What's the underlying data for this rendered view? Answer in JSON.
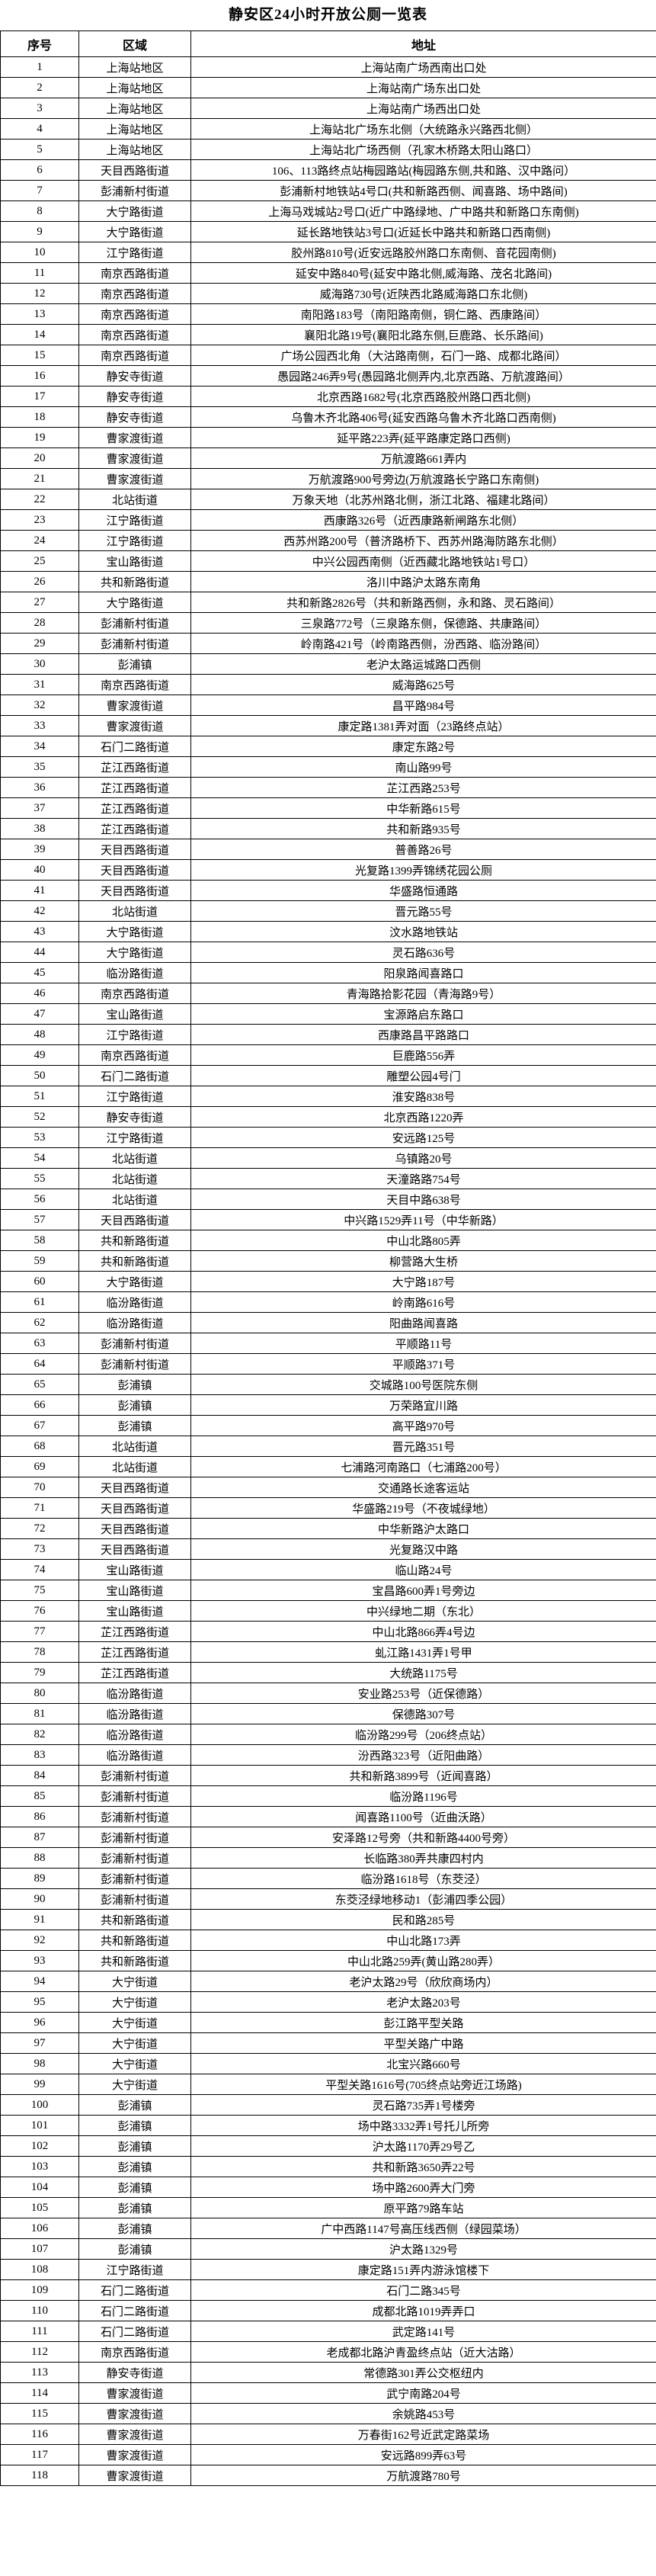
{
  "title": "静安区24小时开放公厕一览表",
  "columns": {
    "no": "序号",
    "region": "区域",
    "address": "地址"
  },
  "rows": [
    {
      "n": "1",
      "r": "上海站地区",
      "a": "上海站南广场西南出口处"
    },
    {
      "n": "2",
      "r": "上海站地区",
      "a": "上海站南广场东出口处"
    },
    {
      "n": "3",
      "r": "上海站地区",
      "a": "上海站南广场西出口处"
    },
    {
      "n": "4",
      "r": "上海站地区",
      "a": "上海站北广场东北侧（大统路永兴路西北侧）"
    },
    {
      "n": "5",
      "r": "上海站地区",
      "a": "上海站北广场西侧（孔家木桥路太阳山路口）"
    },
    {
      "n": "6",
      "r": "天目西路街道",
      "a": "106、113路终点站梅园路站(梅园路东侧,共和路、汉中路问）"
    },
    {
      "n": "7",
      "r": "彭浦新村街道",
      "a": "彭浦新村地铁站4号口(共和新路西侧、闻喜路、场中路间)"
    },
    {
      "n": "8",
      "r": "大宁路街道",
      "a": "上海马戏城站2号口(近广中路绿地、广中路共和新路口东南侧)"
    },
    {
      "n": "9",
      "r": "大宁路街道",
      "a": "延长路地铁站3号口(近延长中路共和新路口西南侧)"
    },
    {
      "n": "10",
      "r": "江宁路街道",
      "a": "胶州路810号(近安远路胶州路口东南侧、音花园南侧)"
    },
    {
      "n": "11",
      "r": "南京西路街道",
      "a": "延安中路840号(延安中路北侧,威海路、茂名北路间)"
    },
    {
      "n": "12",
      "r": "南京西路街道",
      "a": "威海路730号(近陕西北路威海路口东北侧)"
    },
    {
      "n": "13",
      "r": "南京西路街道",
      "a": "南阳路183号（南阳路南侧，铜仁路、西康路间）"
    },
    {
      "n": "14",
      "r": "南京西路街道",
      "a": "襄阳北路19号(襄阳北路东侧,巨鹿路、长乐路间)"
    },
    {
      "n": "15",
      "r": "南京西路街道",
      "a": "广场公园西北角（大沽路南侧，石门一路、成都北路间）"
    },
    {
      "n": "16",
      "r": "静安寺街道",
      "a": "愚园路246弄9号(愚园路北侧弄内,北京西路、万航渡路间）"
    },
    {
      "n": "17",
      "r": "静安寺街道",
      "a": "北京西路1682号(北京西路胶州路口西北侧)"
    },
    {
      "n": "18",
      "r": "静安寺街道",
      "a": "乌鲁木齐北路406号(延安西路乌鲁木齐北路口西南侧)"
    },
    {
      "n": "19",
      "r": "曹家渡街道",
      "a": "延平路223弄(延平路康定路口西侧)"
    },
    {
      "n": "20",
      "r": "曹家渡街道",
      "a": "万航渡路661弄内"
    },
    {
      "n": "21",
      "r": "曹家渡街道",
      "a": "万航渡路900号旁边(万航渡路长宁路口东南侧)"
    },
    {
      "n": "22",
      "r": "北站街道",
      "a": "万象天地（北苏州路北侧，浙江北路、福建北路间）"
    },
    {
      "n": "23",
      "r": "江宁路街道",
      "a": "西康路326号（近西康路新闸路东北侧）"
    },
    {
      "n": "24",
      "r": "江宁路街道",
      "a": "西苏州路200号（普济路桥下、西苏州路海防路东北侧）"
    },
    {
      "n": "25",
      "r": "宝山路街道",
      "a": "中兴公园西南侧（近西藏北路地铁站1号口）"
    },
    {
      "n": "26",
      "r": "共和新路街道",
      "a": "洛川中路沪太路东南角"
    },
    {
      "n": "27",
      "r": "大宁路街道",
      "a": "共和新路2826号（共和新路西侧，永和路、灵石路间）"
    },
    {
      "n": "28",
      "r": "彭浦新村街道",
      "a": "三泉路772号（三泉路东侧，保德路、共康路间）"
    },
    {
      "n": "29",
      "r": "彭浦新村街道",
      "a": "岭南路421号（岭南路西侧，汾西路、临汾路间）"
    },
    {
      "n": "30",
      "r": "彭浦镇",
      "a": "老沪太路运城路口西侧"
    },
    {
      "n": "31",
      "r": "南京西路街道",
      "a": "威海路625号"
    },
    {
      "n": "32",
      "r": "曹家渡街道",
      "a": "昌平路984号"
    },
    {
      "n": "33",
      "r": "曹家渡街道",
      "a": "康定路1381弄对面（23路终点站）"
    },
    {
      "n": "34",
      "r": "石门二路街道",
      "a": "康定东路2号"
    },
    {
      "n": "35",
      "r": "芷江西路街道",
      "a": "南山路99号"
    },
    {
      "n": "36",
      "r": "芷江西路街道",
      "a": "芷江西路253号"
    },
    {
      "n": "37",
      "r": "芷江西路街道",
      "a": "中华新路615号"
    },
    {
      "n": "38",
      "r": "芷江西路街道",
      "a": "共和新路935号"
    },
    {
      "n": "39",
      "r": "天目西路街道",
      "a": "普善路26号"
    },
    {
      "n": "40",
      "r": "天目西路街道",
      "a": "光复路1399弄锦绣花园公厕"
    },
    {
      "n": "41",
      "r": "天目西路街道",
      "a": "华盛路恒通路"
    },
    {
      "n": "42",
      "r": "北站街道",
      "a": "晋元路55号"
    },
    {
      "n": "43",
      "r": "大宁路街道",
      "a": "汶水路地铁站"
    },
    {
      "n": "44",
      "r": "大宁路街道",
      "a": "灵石路636号"
    },
    {
      "n": "45",
      "r": "临汾路街道",
      "a": "阳泉路闻喜路口"
    },
    {
      "n": "46",
      "r": "南京西路街道",
      "a": "青海路拾影花园（青海路9号）"
    },
    {
      "n": "47",
      "r": "宝山路街道",
      "a": "宝源路启东路口"
    },
    {
      "n": "48",
      "r": "江宁路街道",
      "a": "西康路昌平路路口"
    },
    {
      "n": "49",
      "r": "南京西路街道",
      "a": "巨鹿路556弄"
    },
    {
      "n": "50",
      "r": "石门二路街道",
      "a": "雕塑公园4号门"
    },
    {
      "n": "51",
      "r": "江宁路街道",
      "a": "淮安路838号"
    },
    {
      "n": "52",
      "r": "静安寺街道",
      "a": "北京西路1220弄"
    },
    {
      "n": "53",
      "r": "江宁路街道",
      "a": "安远路125号"
    },
    {
      "n": "54",
      "r": "北站街道",
      "a": "乌镇路20号"
    },
    {
      "n": "55",
      "r": "北站街道",
      "a": "天潼路路754号"
    },
    {
      "n": "56",
      "r": "北站街道",
      "a": "天目中路638号"
    },
    {
      "n": "57",
      "r": "天目西路街道",
      "a": "中兴路1529弄11号（中华新路）"
    },
    {
      "n": "58",
      "r": "共和新路街道",
      "a": "中山北路805弄"
    },
    {
      "n": "59",
      "r": "共和新路街道",
      "a": "柳营路大生桥"
    },
    {
      "n": "60",
      "r": "大宁路街道",
      "a": "大宁路187号"
    },
    {
      "n": "61",
      "r": "临汾路街道",
      "a": "岭南路616号"
    },
    {
      "n": "62",
      "r": "临汾路街道",
      "a": "阳曲路闻喜路"
    },
    {
      "n": "63",
      "r": "彭浦新村街道",
      "a": "平顺路11号"
    },
    {
      "n": "64",
      "r": "彭浦新村街道",
      "a": "平顺路371号"
    },
    {
      "n": "65",
      "r": "彭浦镇",
      "a": "交城路100号医院东侧"
    },
    {
      "n": "66",
      "r": "彭浦镇",
      "a": "万荣路宜川路"
    },
    {
      "n": "67",
      "r": "彭浦镇",
      "a": "高平路970号"
    },
    {
      "n": "68",
      "r": "北站街道",
      "a": "晋元路351号"
    },
    {
      "n": "69",
      "r": "北站街道",
      "a": "七浦路河南路口（七浦路200号）"
    },
    {
      "n": "70",
      "r": "天目西路街道",
      "a": "交通路长途客运站"
    },
    {
      "n": "71",
      "r": "天目西路街道",
      "a": "华盛路219号（不夜城绿地）"
    },
    {
      "n": "72",
      "r": "天目西路街道",
      "a": "中华新路沪太路口"
    },
    {
      "n": "73",
      "r": "天目西路街道",
      "a": "光复路汉中路"
    },
    {
      "n": "74",
      "r": "宝山路街道",
      "a": "临山路24号"
    },
    {
      "n": "75",
      "r": "宝山路街道",
      "a": "宝昌路600弄1号旁边"
    },
    {
      "n": "76",
      "r": "宝山路街道",
      "a": "中兴绿地二期（东北）"
    },
    {
      "n": "77",
      "r": "芷江西路街道",
      "a": "中山北路866弄4号边"
    },
    {
      "n": "78",
      "r": "芷江西路街道",
      "a": "虬江路1431弄1号甲"
    },
    {
      "n": "79",
      "r": "芷江西路街道",
      "a": "大统路1175号"
    },
    {
      "n": "80",
      "r": "临汾路街道",
      "a": "安业路253号（近保德路）"
    },
    {
      "n": "81",
      "r": "临汾路街道",
      "a": "保德路307号"
    },
    {
      "n": "82",
      "r": "临汾路街道",
      "a": "临汾路299号（206终点站）"
    },
    {
      "n": "83",
      "r": "临汾路街道",
      "a": "汾西路323号（近阳曲路）"
    },
    {
      "n": "84",
      "r": "彭浦新村街道",
      "a": "共和新路3899号（近闻喜路）"
    },
    {
      "n": "85",
      "r": "彭浦新村街道",
      "a": "临汾路1196号"
    },
    {
      "n": "86",
      "r": "彭浦新村街道",
      "a": "闻喜路1100号（近曲沃路）"
    },
    {
      "n": "87",
      "r": "彭浦新村街道",
      "a": "安泽路12号旁（共和新路4400号旁）"
    },
    {
      "n": "88",
      "r": "彭浦新村街道",
      "a": "长临路380弄共康四村内"
    },
    {
      "n": "89",
      "r": "彭浦新村街道",
      "a": "临汾路1618号（东茭泾）"
    },
    {
      "n": "90",
      "r": "彭浦新村街道",
      "a": "东茭泾绿地移动1（彭浦四季公园）"
    },
    {
      "n": "91",
      "r": "共和新路街道",
      "a": "民和路285号"
    },
    {
      "n": "92",
      "r": "共和新路街道",
      "a": "中山北路173弄"
    },
    {
      "n": "93",
      "r": "共和新路街道",
      "a": "中山北路259弄(黄山路280弄）"
    },
    {
      "n": "94",
      "r": "大宁街道",
      "a": "老沪太路29号（欣欣商场内）"
    },
    {
      "n": "95",
      "r": "大宁街道",
      "a": "老沪太路203号"
    },
    {
      "n": "96",
      "r": "大宁街道",
      "a": "彭江路平型关路"
    },
    {
      "n": "97",
      "r": "大宁街道",
      "a": "平型关路广中路"
    },
    {
      "n": "98",
      "r": "大宁街道",
      "a": "北宝兴路660号"
    },
    {
      "n": "99",
      "r": "大宁街道",
      "a": "平型关路1616号(705终点站旁近江场路)"
    },
    {
      "n": "100",
      "r": "彭浦镇",
      "a": "灵石路735弄1号楼旁"
    },
    {
      "n": "101",
      "r": "彭浦镇",
      "a": "场中路3332弄1号托儿所旁"
    },
    {
      "n": "102",
      "r": "彭浦镇",
      "a": "沪太路1170弄29号乙"
    },
    {
      "n": "103",
      "r": "彭浦镇",
      "a": "共和新路3650弄22号"
    },
    {
      "n": "104",
      "r": "彭浦镇",
      "a": "场中路2600弄大门旁"
    },
    {
      "n": "105",
      "r": "彭浦镇",
      "a": "原平路79路车站"
    },
    {
      "n": "106",
      "r": "彭浦镇",
      "a": "广中西路1147号高压线西侧（绿园菜场）"
    },
    {
      "n": "107",
      "r": "彭浦镇",
      "a": "沪太路1329号"
    },
    {
      "n": "108",
      "r": "江宁路街道",
      "a": "康定路151弄内游泳馆楼下"
    },
    {
      "n": "109",
      "r": "石门二路街道",
      "a": "石门二路345号"
    },
    {
      "n": "110",
      "r": "石门二路街道",
      "a": "成都北路1019弄弄口"
    },
    {
      "n": "111",
      "r": "石门二路街道",
      "a": "武定路141号"
    },
    {
      "n": "112",
      "r": "南京西路街道",
      "a": "老成都北路沪青盈终点站（近大沽路）"
    },
    {
      "n": "113",
      "r": "静安寺街道",
      "a": "常德路301弄公交枢纽内"
    },
    {
      "n": "114",
      "r": "曹家渡街道",
      "a": "武宁南路204号"
    },
    {
      "n": "115",
      "r": "曹家渡街道",
      "a": "余姚路453号"
    },
    {
      "n": "116",
      "r": "曹家渡街道",
      "a": "万春街162号近武定路菜场"
    },
    {
      "n": "117",
      "r": "曹家渡街道",
      "a": "安远路899弄63号"
    },
    {
      "n": "118",
      "r": "曹家渡街道",
      "a": "万航渡路780号"
    }
  ]
}
